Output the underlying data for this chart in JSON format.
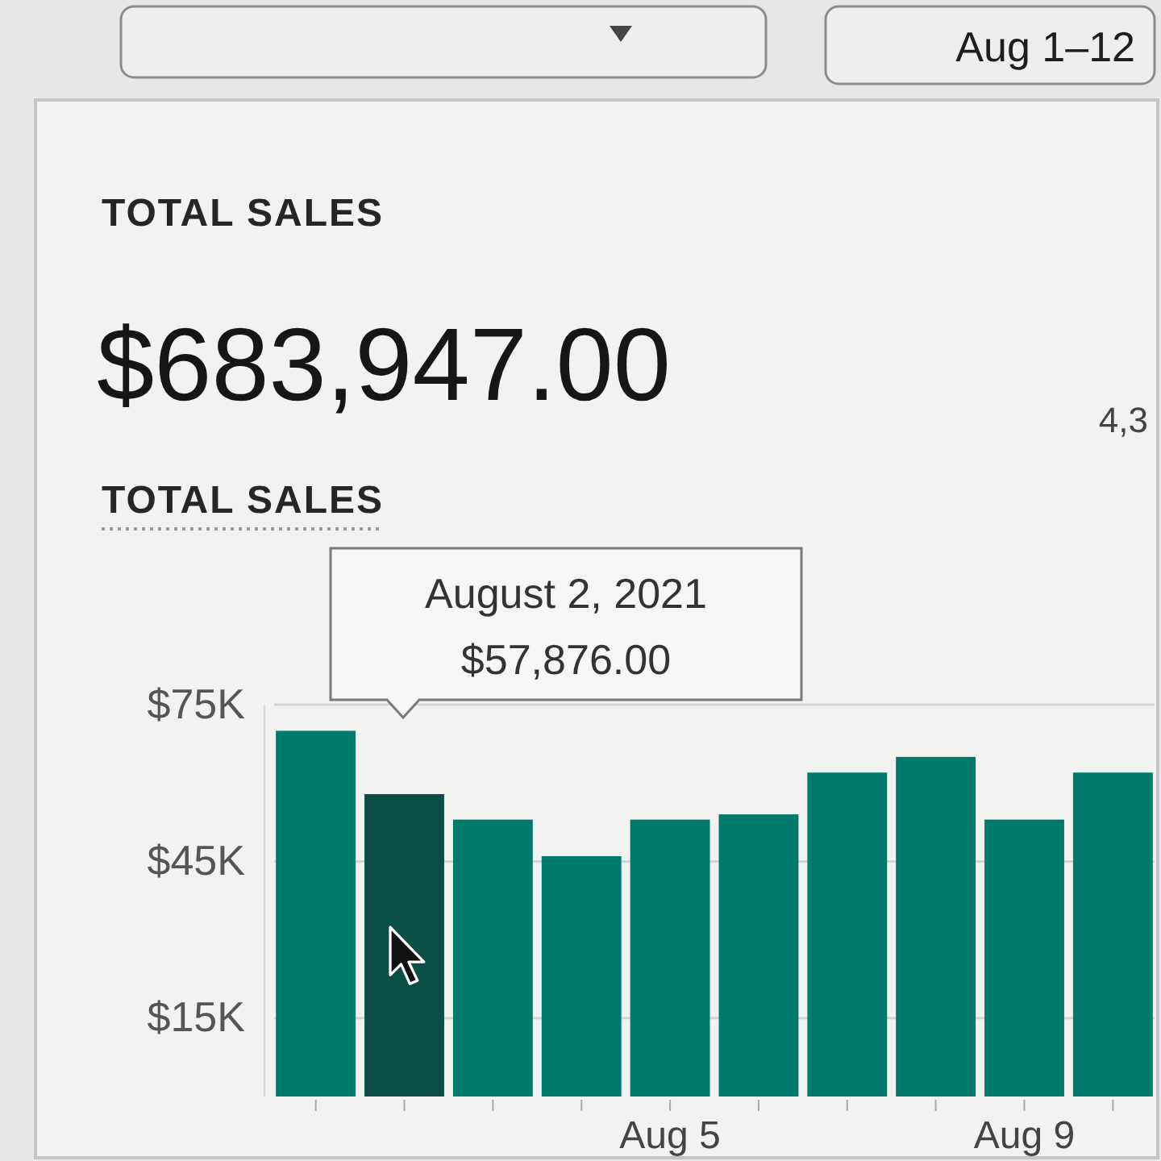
{
  "chart_data": {
    "type": "bar",
    "title": "TOTAL SALES",
    "subtitle": "$683,947.00",
    "annotations": [
      "TOTAL SALES",
      "Aug 1–12",
      "4,3",
      "August 2, 2021",
      "$57,876.00"
    ],
    "categories": [
      null,
      null,
      null,
      null,
      "Aug 5",
      null,
      null,
      null,
      "Aug 9",
      null
    ],
    "values": [
      70000,
      57876,
      53000,
      46000,
      53000,
      54000,
      62000,
      65000,
      53000,
      62000
    ],
    "colors": [
      "#007a6c",
      "#0a4e46",
      "#007a6c",
      "#007a6c",
      "#007a6c",
      "#007a6c",
      "#007a6c",
      "#007a6c",
      "#007a6c",
      "#007a6c"
    ],
    "ylim": [
      0,
      75000
    ],
    "yticks": [
      {
        "value": 15000,
        "label": "$15K"
      },
      {
        "value": 45000,
        "label": "$45K"
      },
      {
        "value": 75000,
        "label": "$75K"
      }
    ],
    "grid": "y"
  }
}
